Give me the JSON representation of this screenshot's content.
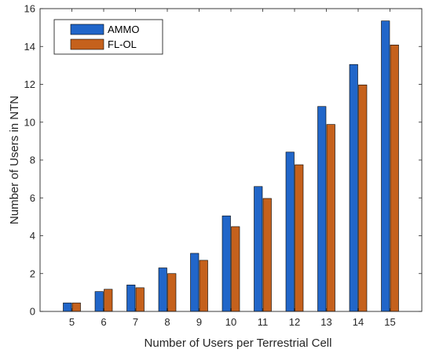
{
  "chart_data": {
    "type": "bar",
    "categories": [
      "5",
      "6",
      "7",
      "8",
      "9",
      "10",
      "11",
      "12",
      "13",
      "14",
      "15"
    ],
    "series": [
      {
        "name": "AMMO",
        "color": "#2166c9",
        "values": [
          0.45,
          1.05,
          1.4,
          2.3,
          3.07,
          5.05,
          6.6,
          8.42,
          10.83,
          13.05,
          15.35
        ]
      },
      {
        "name": "FL-OL",
        "color": "#c5611c",
        "values": [
          0.45,
          1.17,
          1.25,
          2.0,
          2.7,
          4.48,
          5.97,
          7.75,
          9.88,
          11.97,
          14.08
        ]
      }
    ],
    "xlabel": "Number of Users per Terrestrial Cell",
    "ylabel": "Number of Users in NTN",
    "ylim": [
      0,
      16
    ],
    "yticks": [
      "0",
      "2",
      "4",
      "6",
      "8",
      "10",
      "12",
      "14",
      "16"
    ],
    "grid": false,
    "legend_position": "top-left"
  }
}
